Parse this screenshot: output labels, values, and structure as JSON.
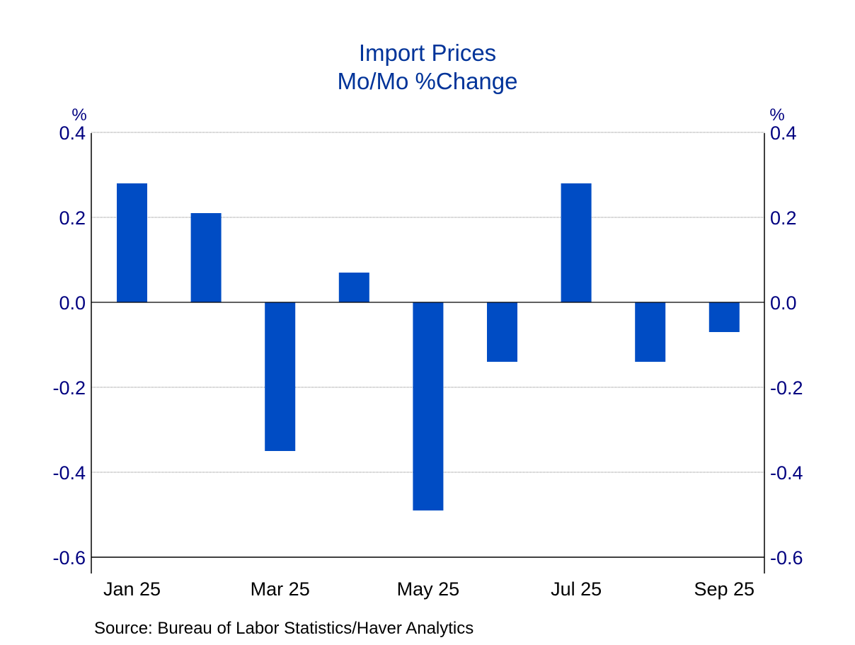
{
  "chart_data": {
    "type": "bar",
    "title": "Import Prices",
    "subtitle": "Mo/Mo %Change",
    "ylabel_left": "%",
    "ylabel_right": "%",
    "ylim": [
      -0.6,
      0.4
    ],
    "yticks": [
      0.4,
      0.2,
      0.0,
      -0.2,
      -0.4,
      -0.6
    ],
    "ytick_labels": [
      "0.4",
      "0.2",
      "0.0",
      "-0.2",
      "-0.4",
      "-0.6"
    ],
    "categories": [
      "Jan 25",
      "Feb 25",
      "Mar 25",
      "Apr 25",
      "May 25",
      "Jun 25",
      "Jul 25",
      "Aug 25",
      "Sep 25"
    ],
    "xtick_labels": [
      "Jan 25",
      "Mar 25",
      "May 25",
      "Jul 25",
      "Sep 25"
    ],
    "xtick_indices": [
      0,
      2,
      4,
      6,
      8
    ],
    "values": [
      0.28,
      0.21,
      -0.35,
      0.07,
      -0.49,
      -0.14,
      0.28,
      -0.14,
      -0.07
    ],
    "grid": true,
    "source": "Source:  Bureau of Labor Statistics/Haver Analytics",
    "colors": {
      "bar": "#004CC4",
      "axis_text": "#000080",
      "title": "#003399"
    }
  }
}
